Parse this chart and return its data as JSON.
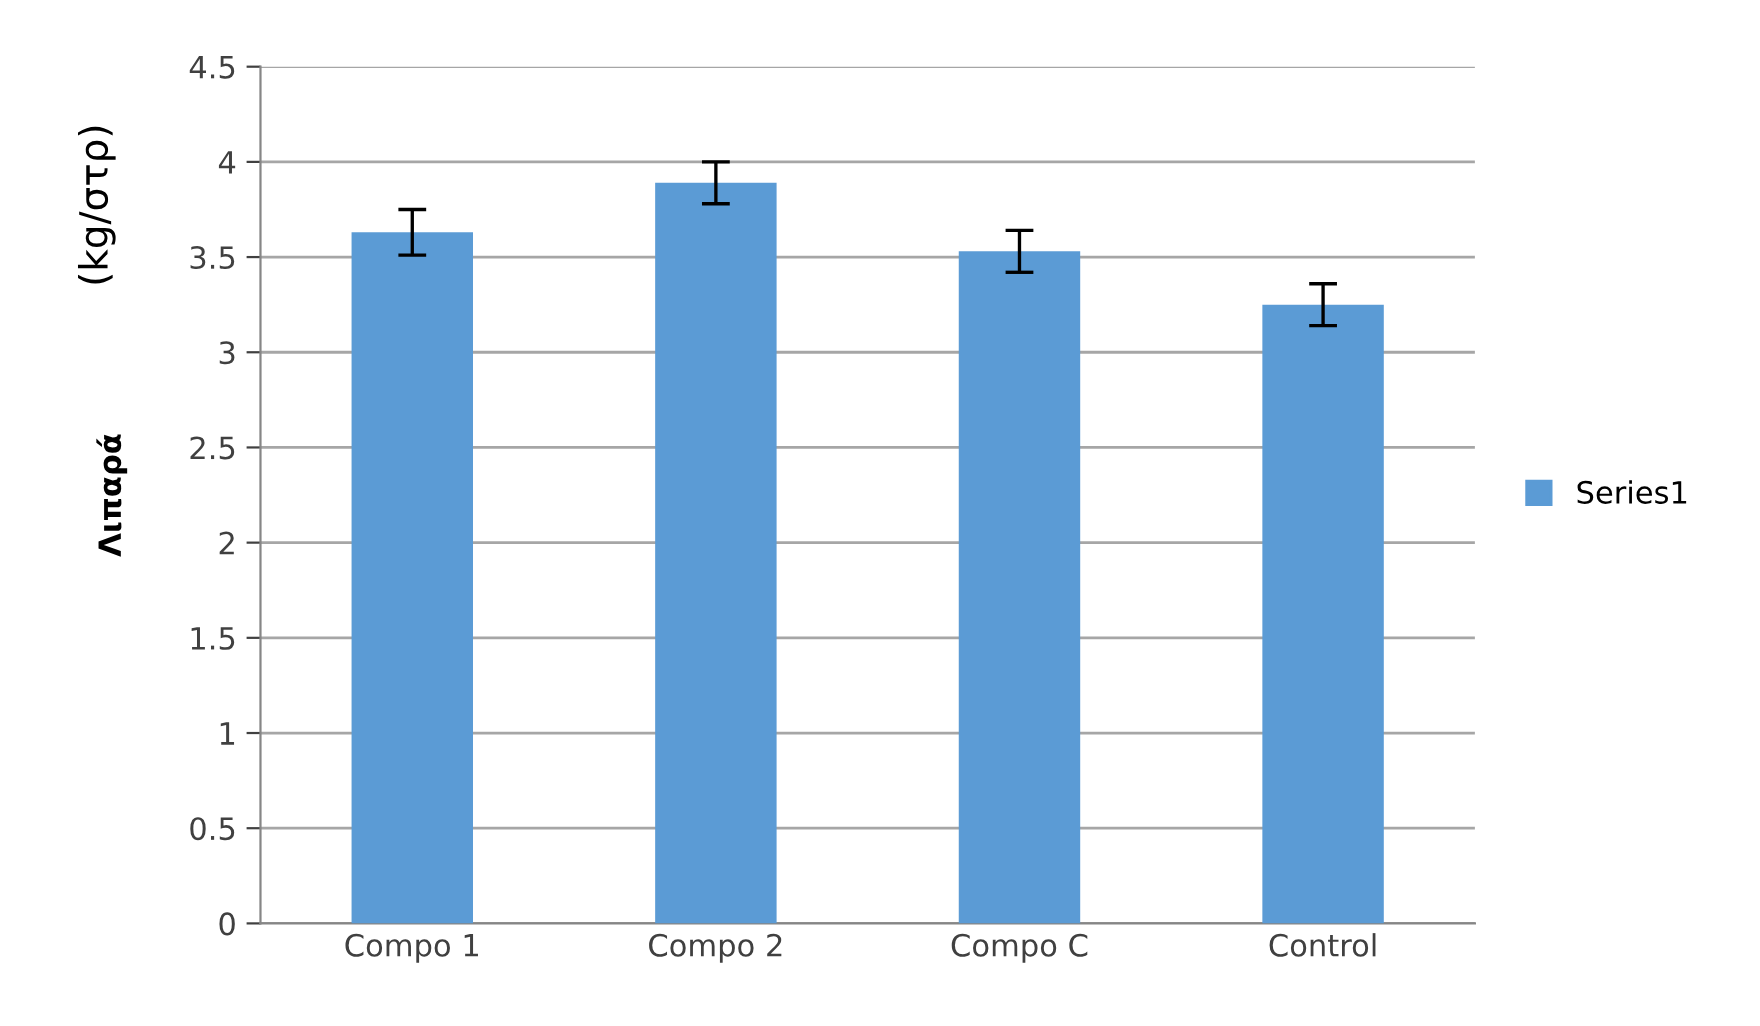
{
  "chart_data": {
    "type": "bar",
    "ylabel": "Λιπαρά",
    "annotations": [
      "(kg/στρ)"
    ],
    "categories": [
      "Compo 1",
      "Compo 2",
      "Compo C",
      "Control"
    ],
    "series": [
      {
        "name": "Series1",
        "color": "#5b9bd5",
        "values": [
          3.63,
          3.89,
          3.53,
          3.25
        ],
        "errors": [
          0.12,
          0.11,
          0.11,
          0.11
        ]
      }
    ],
    "ylim": [
      0,
      4.5
    ],
    "yticks": [
      0,
      0.5,
      1,
      1.5,
      2,
      2.5,
      3,
      3.5,
      4,
      4.5
    ],
    "grid": "y",
    "legend": "right"
  }
}
